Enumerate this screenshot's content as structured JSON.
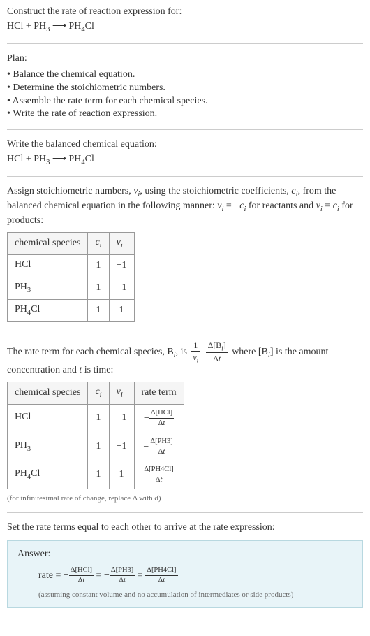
{
  "header": {
    "prompt": "Construct the rate of reaction expression for:",
    "equation_lhs_a": "HCl",
    "plus1": " + ",
    "equation_lhs_b": "PH",
    "equation_lhs_b_sub": "3",
    "arrow": "  ⟶  ",
    "equation_rhs": "PH",
    "equation_rhs_sub": "4",
    "equation_rhs_tail": "Cl"
  },
  "plan": {
    "title": "Plan:",
    "items": [
      "Balance the chemical equation.",
      "Determine the stoichiometric numbers.",
      "Assemble the rate term for each chemical species.",
      "Write the rate of reaction expression."
    ]
  },
  "balanced": {
    "title": "Write the balanced chemical equation:",
    "lhs_a": "HCl",
    "plus1": " + ",
    "lhs_b": "PH",
    "lhs_b_sub": "3",
    "arrow": "  ⟶  ",
    "rhs": "PH",
    "rhs_sub": "4",
    "rhs_tail": "Cl"
  },
  "stoich": {
    "intro_a": "Assign stoichiometric numbers, ",
    "nu": "ν",
    "sub_i": "i",
    "intro_b": ", using the stoichiometric coefficients, ",
    "c": "c",
    "intro_c": ", from the balanced chemical equation in the following manner: ",
    "eq1_lhs": "ν",
    "eq1_mid": " = −",
    "eq1_rhs": "c",
    "intro_d": " for reactants and ",
    "eq2_mid": " = ",
    "intro_e": " for products:",
    "table": {
      "h1": "chemical species",
      "h2": "c",
      "h2_sub": "i",
      "h3": "ν",
      "h3_sub": "i",
      "rows": [
        {
          "sp_a": "HCl",
          "sp_b": "",
          "sp_sub": "",
          "sp_tail": "",
          "c": "1",
          "nu": "−1"
        },
        {
          "sp_a": "PH",
          "sp_b": "",
          "sp_sub": "3",
          "sp_tail": "",
          "c": "1",
          "nu": "−1"
        },
        {
          "sp_a": "PH",
          "sp_b": "",
          "sp_sub": "4",
          "sp_tail": "Cl",
          "c": "1",
          "nu": "1"
        }
      ]
    }
  },
  "rate_term": {
    "intro_a": "The rate term for each chemical species, B",
    "intro_b": ", is ",
    "frac1_num": "1",
    "frac1_den_a": "ν",
    "frac1_den_sub": "i",
    "frac2_num_a": "Δ[B",
    "frac2_num_sub": "i",
    "frac2_num_b": "]",
    "frac2_den": "Δt",
    "intro_c": " where [B",
    "intro_d": "] is the amount concentration and ",
    "t": "t",
    "intro_e": " is time:",
    "table": {
      "h1": "chemical species",
      "h2": "c",
      "h2_sub": "i",
      "h3": "ν",
      "h3_sub": "i",
      "h4": "rate term",
      "rows": [
        {
          "sp_a": "HCl",
          "sp_sub": "",
          "sp_tail": "",
          "c": "1",
          "nu": "−1",
          "sign": "−",
          "num": "Δ[HCl]",
          "den": "Δt"
        },
        {
          "sp_a": "PH",
          "sp_sub": "3",
          "sp_tail": "",
          "c": "1",
          "nu": "−1",
          "sign": "−",
          "num": "Δ[PH3]",
          "den": "Δt"
        },
        {
          "sp_a": "PH",
          "sp_sub": "4",
          "sp_tail": "Cl",
          "c": "1",
          "nu": "1",
          "sign": "",
          "num": "Δ[PH4Cl]",
          "den": "Δt"
        }
      ]
    },
    "note": "(for infinitesimal rate of change, replace Δ with d)"
  },
  "final": {
    "intro": "Set the rate terms equal to each other to arrive at the rate expression:",
    "label": "Answer:",
    "rate": "rate",
    "eq": " = ",
    "t1_sign": "−",
    "t1_num": "Δ[HCl]",
    "t1_den": "Δt",
    "t2_sign": "−",
    "t2_num": "Δ[PH3]",
    "t2_den": "Δt",
    "t3_sign": "",
    "t3_num": "Δ[PH4Cl]",
    "t3_den": "Δt",
    "assume": "(assuming constant volume and no accumulation of intermediates or side products)"
  }
}
